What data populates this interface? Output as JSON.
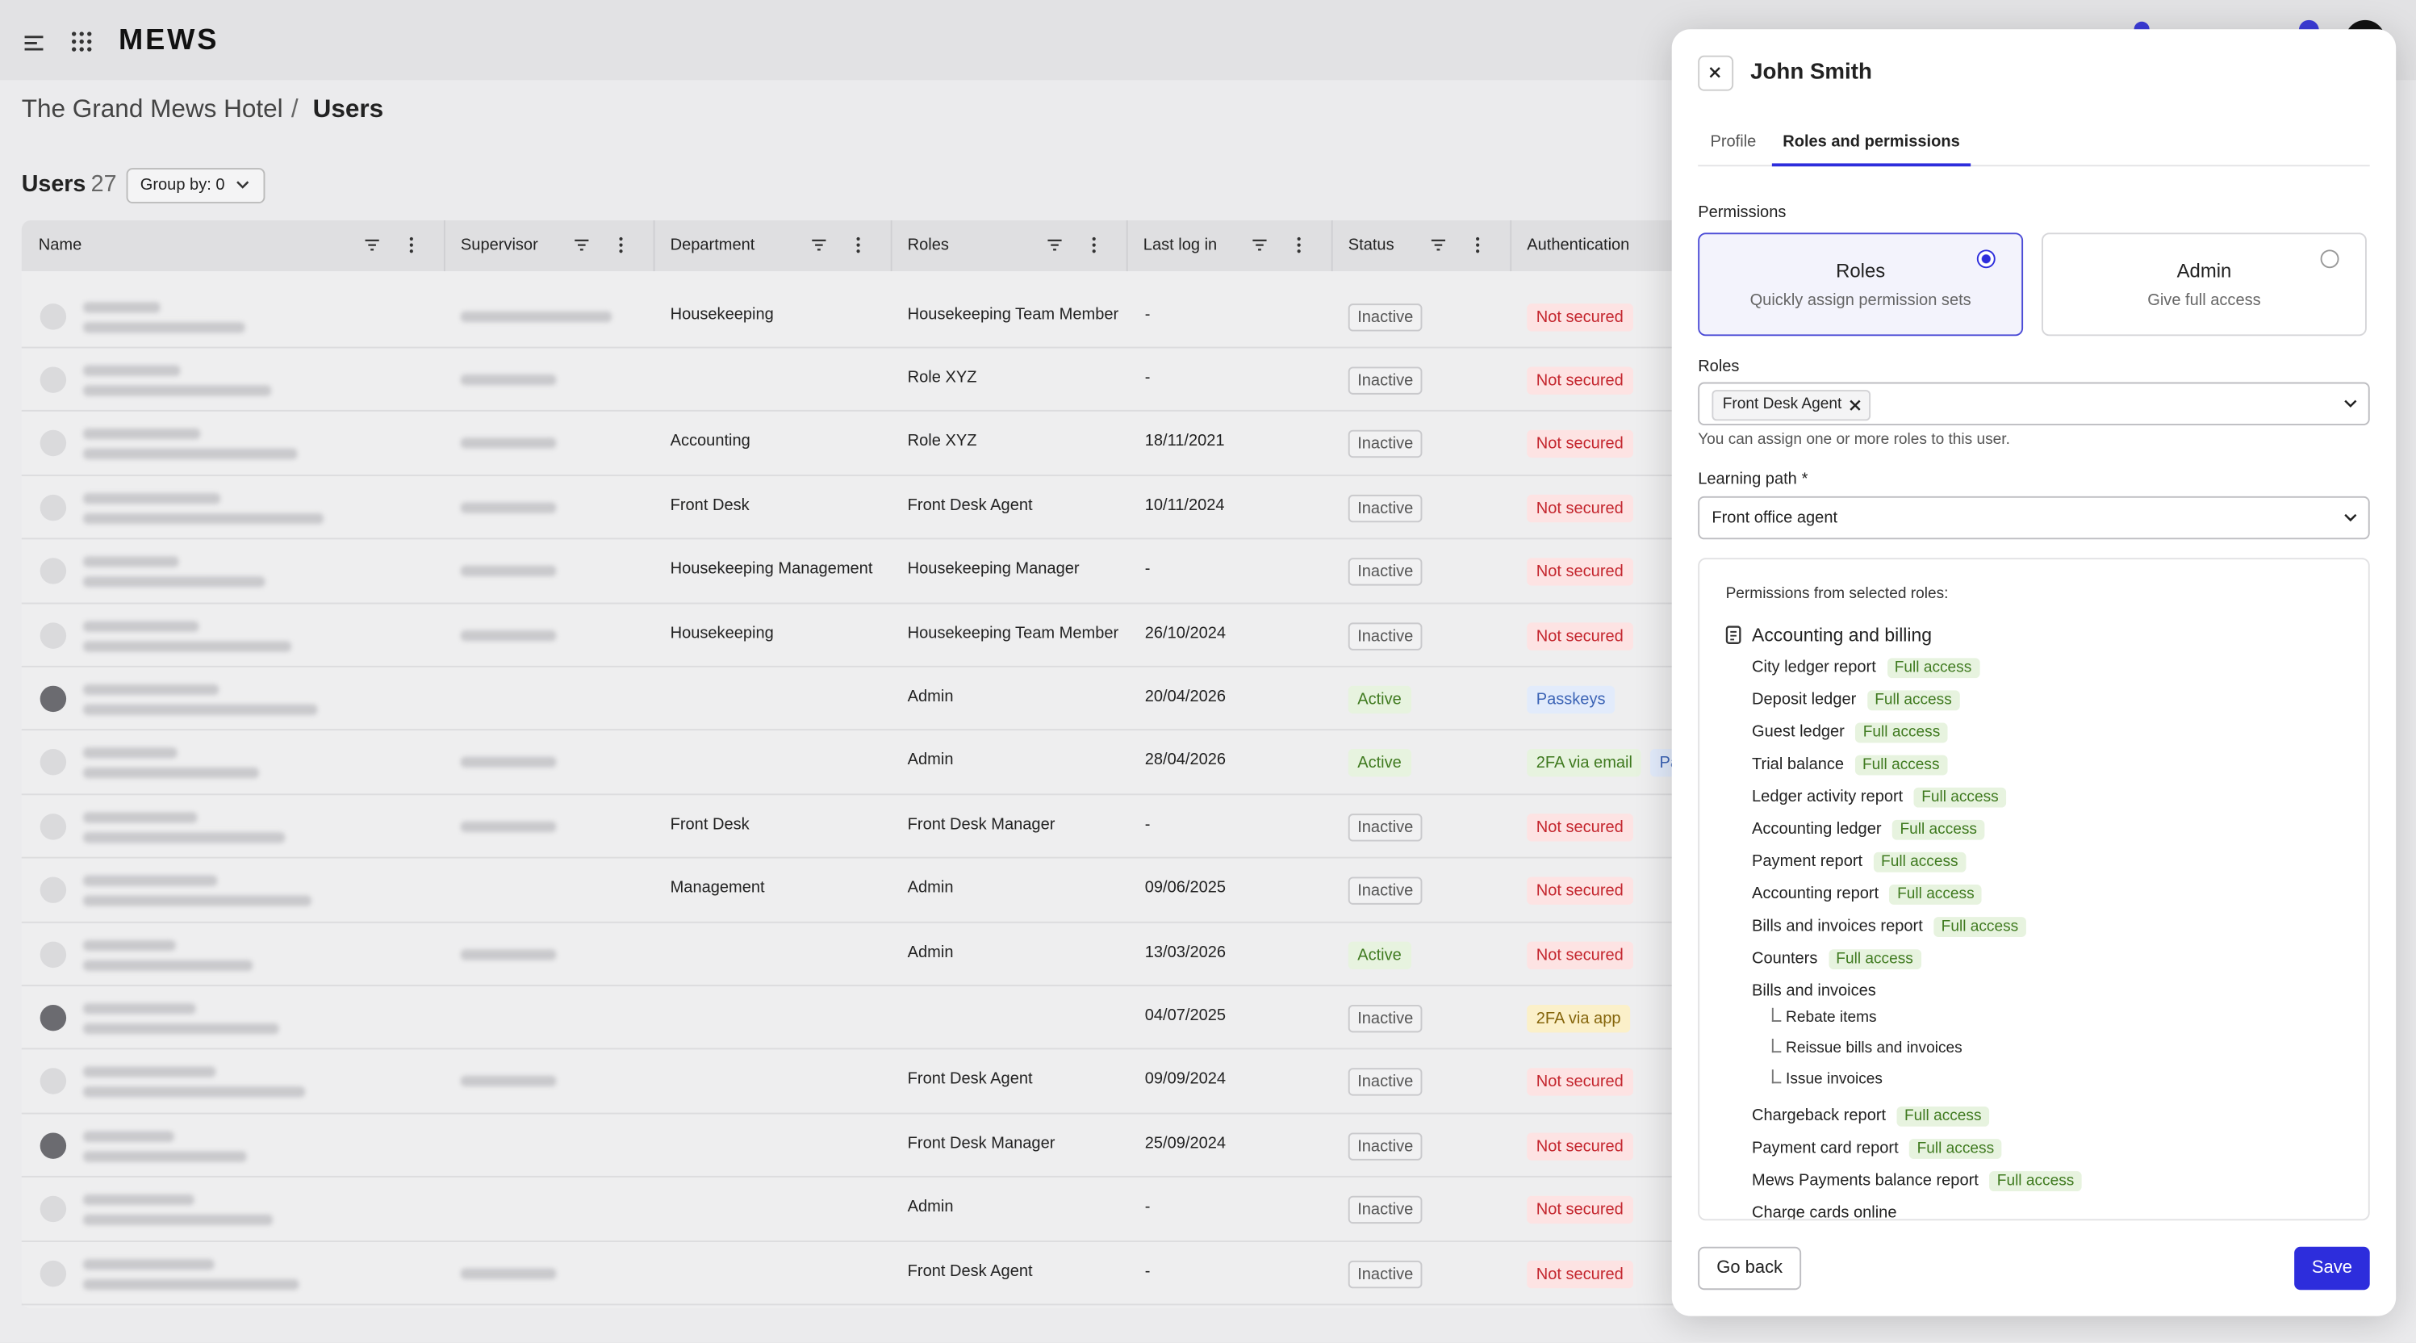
{
  "header": {
    "logo": "MEWS",
    "breadcrumb": [
      "The Grand Mews Hotel",
      "Users"
    ],
    "separator": "/"
  },
  "toolbar": {
    "title": "Users",
    "count": 27,
    "group_by": "Group by: 0"
  },
  "table": {
    "columns": [
      "Name",
      "Supervisor",
      "Department",
      "Roles",
      "Last log in",
      "Status",
      "Authentication"
    ],
    "rows": [
      {
        "department": "Housekeeping",
        "roles": "Housekeeping Team Member",
        "last_login": "-",
        "status": {
          "label": "Inactive",
          "color": "gray"
        },
        "authentication": [
          {
            "label": "Not secured",
            "color": "red"
          }
        ]
      },
      {
        "department": null,
        "roles": "Role XYZ",
        "last_login": "-",
        "status": {
          "label": "Inactive",
          "color": "gray"
        },
        "authentication": [
          {
            "label": "Not secured",
            "color": "red"
          }
        ]
      },
      {
        "department": "Accounting",
        "roles": "Role XYZ",
        "last_login": "18/11/2021",
        "status": {
          "label": "Inactive",
          "color": "gray"
        },
        "authentication": [
          {
            "label": "Not secured",
            "color": "red"
          }
        ]
      },
      {
        "department": "Front Desk",
        "roles": "Front Desk Agent",
        "last_login": "10/11/2024",
        "status": {
          "label": "Inactive",
          "color": "gray"
        },
        "authentication": [
          {
            "label": "Not secured",
            "color": "red"
          }
        ]
      },
      {
        "department": "Housekeeping Management",
        "roles": "Housekeeping Manager",
        "last_login": "-",
        "status": {
          "label": "Inactive",
          "color": "gray"
        },
        "authentication": [
          {
            "label": "Not secured",
            "color": "red"
          }
        ]
      },
      {
        "department": "Housekeeping",
        "roles": "Housekeeping Team Member",
        "last_login": "26/10/2024",
        "status": {
          "label": "Inactive",
          "color": "gray"
        },
        "authentication": [
          {
            "label": "Not secured",
            "color": "red"
          }
        ]
      },
      {
        "department": null,
        "roles": "Admin",
        "last_login": "20/04/2026",
        "status": {
          "label": "Active",
          "color": "green"
        },
        "authentication": [
          {
            "label": "Passkeys",
            "color": "blue"
          }
        ]
      },
      {
        "department": null,
        "roles": "Admin",
        "last_login": "28/04/2026",
        "status": {
          "label": "Active",
          "color": "green"
        },
        "authentication": [
          {
            "label": "2FA via email",
            "color": "green"
          },
          {
            "label": "Passkeys",
            "color": "blue"
          }
        ]
      },
      {
        "department": "Front Desk",
        "roles": "Front Desk Manager",
        "last_login": "-",
        "status": {
          "label": "Inactive",
          "color": "gray"
        },
        "authentication": [
          {
            "label": "Not secured",
            "color": "red"
          }
        ]
      },
      {
        "department": "Management",
        "roles": "Admin",
        "last_login": "09/06/2025",
        "status": {
          "label": "Inactive",
          "color": "gray"
        },
        "authentication": [
          {
            "label": "Not secured",
            "color": "red"
          }
        ]
      },
      {
        "department": null,
        "roles": "Admin",
        "last_login": "13/03/2026",
        "status": {
          "label": "Active",
          "color": "green"
        },
        "authentication": [
          {
            "label": "Not secured",
            "color": "red"
          }
        ]
      },
      {
        "department": null,
        "roles": null,
        "last_login": "04/07/2025",
        "status": {
          "label": "Inactive",
          "color": "gray"
        },
        "authentication": [
          {
            "label": "2FA via app",
            "color": "yellow"
          }
        ]
      },
      {
        "department": null,
        "roles": "Front Desk Agent",
        "last_login": "09/09/2024",
        "status": {
          "label": "Inactive",
          "color": "gray"
        },
        "authentication": [
          {
            "label": "Not secured",
            "color": "red"
          }
        ]
      },
      {
        "department": null,
        "roles": "Front Desk Manager",
        "last_login": "25/09/2024",
        "status": {
          "label": "Inactive",
          "color": "gray"
        },
        "authentication": [
          {
            "label": "Not secured",
            "color": "red"
          }
        ]
      },
      {
        "department": null,
        "roles": "Admin",
        "last_login": "-",
        "status": {
          "label": "Inactive",
          "color": "gray"
        },
        "authentication": [
          {
            "label": "Not secured",
            "color": "red"
          }
        ]
      },
      {
        "department": null,
        "roles": "Front Desk Agent",
        "last_login": "-",
        "status": {
          "label": "Inactive",
          "color": "gray"
        },
        "authentication": [
          {
            "label": "Not secured",
            "color": "red"
          }
        ]
      }
    ]
  },
  "drawer": {
    "title": "John Smith",
    "tabs": [
      "Profile",
      "Roles and permissions"
    ],
    "active_tab": 1,
    "permissions_label": "Permissions",
    "options": [
      {
        "title": "Roles",
        "description": "Quickly assign permission sets",
        "selected": true
      },
      {
        "title": "Admin",
        "description": "Give full access",
        "selected": false
      }
    ],
    "roles_label": "Roles",
    "roles_selected": [
      "Front Desk Agent"
    ],
    "roles_hint": "You can assign one or more roles to this user.",
    "learning_path_label": "Learning path",
    "required_mark": "*",
    "learning_path_value": "Front office agent",
    "permissions_heading": "Permissions from selected roles:",
    "group": "Accounting and billing",
    "access_color": "green",
    "items": [
      {
        "name": "City ledger report",
        "access": "Full access"
      },
      {
        "name": "Deposit ledger",
        "access": "Full access"
      },
      {
        "name": "Guest ledger",
        "access": "Full access"
      },
      {
        "name": "Trial balance",
        "access": "Full access"
      },
      {
        "name": "Ledger activity report",
        "access": "Full access"
      },
      {
        "name": "Accounting ledger",
        "access": "Full access"
      },
      {
        "name": "Payment report",
        "access": "Full access"
      },
      {
        "name": "Accounting report",
        "access": "Full access"
      },
      {
        "name": "Bills and invoices report",
        "access": "Full access"
      },
      {
        "name": "Counters",
        "access": "Full access"
      },
      {
        "name": "Bills and invoices",
        "children": [
          "Rebate items",
          "Reissue bills and invoices",
          "Issue invoices"
        ]
      },
      {
        "name": "Chargeback report",
        "access": "Full access"
      },
      {
        "name": "Payment card report",
        "access": "Full access"
      },
      {
        "name": "Mews Payments balance report",
        "access": "Full access"
      },
      {
        "name": "Charge cards online"
      }
    ],
    "buttons": {
      "back": "Go back",
      "save": "Save"
    }
  }
}
